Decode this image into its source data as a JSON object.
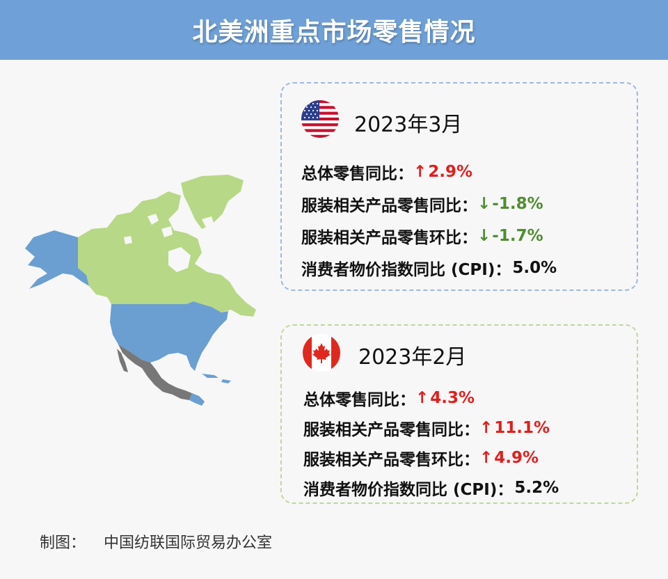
{
  "title": "北美洲重点市场零售情况",
  "colors": {
    "header": "#6fa1d8",
    "usa_map": "#6b9fd1",
    "canada_map": "#b7d886",
    "mexico_map": "#777777",
    "up": "#e41d1d",
    "down": "#4f8d2f"
  },
  "usa": {
    "period": "2023年3月",
    "rows": [
      {
        "label": "总体零售同比：",
        "arrow": "↑",
        "value": "2.9%"
      },
      {
        "label": "服装相关产品零售同比：",
        "arrow": "↓",
        "value": "-1.8%"
      },
      {
        "label": "服装相关产品零售环比：",
        "arrow": "↓",
        "value": "-1.7%"
      },
      {
        "label": "消费者物价指数同比 (CPI)：",
        "arrow": "",
        "value": "5.0%"
      }
    ]
  },
  "canada": {
    "period": "2023年2月",
    "rows": [
      {
        "label": "总体零售同比：",
        "arrow": "↑",
        "value": "4.3%"
      },
      {
        "label": "服装相关产品零售同比：",
        "arrow": "↑",
        "value": "11.1%"
      },
      {
        "label": "服装相关产品零售环比：",
        "arrow": "↑",
        "value": "4.9%"
      },
      {
        "label": "消费者物价指数同比 (CPI)：",
        "arrow": "",
        "value": "5.2%"
      }
    ]
  },
  "footer": {
    "label": "制图：",
    "source": "中国纺联国际贸易办公室"
  }
}
